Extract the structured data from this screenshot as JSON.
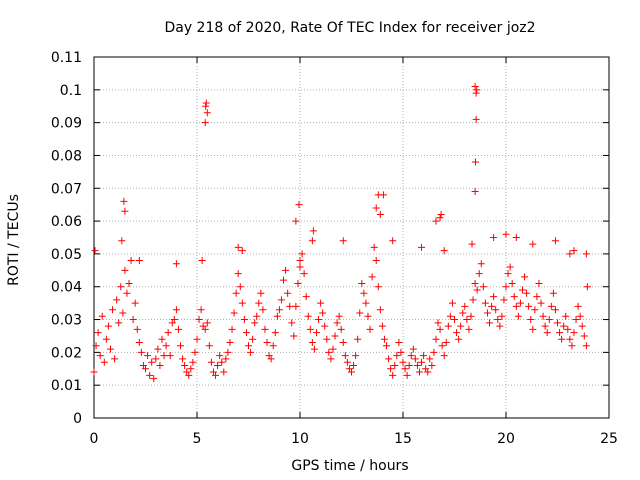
{
  "chart_data": {
    "type": "scatter",
    "title": "Day 218 of 2020, Rate Of TEC Index for receiver joz2",
    "xlabel": "GPS time / hours",
    "ylabel": "ROTI / TECUs",
    "xlim": [
      0,
      25
    ],
    "ylim": [
      0,
      0.11
    ],
    "xticks": [
      0,
      5,
      10,
      15,
      20,
      25
    ],
    "xtick_labels": [
      "0",
      "5",
      "10",
      "15",
      "20",
      "25"
    ],
    "yticks": [
      0,
      0.01,
      0.02,
      0.03,
      0.04,
      0.05,
      0.06,
      0.07,
      0.08,
      0.09,
      0.1,
      0.11
    ],
    "ytick_labels": [
      "0",
      "0.01",
      "0.02",
      "0.03",
      "0.04",
      "0.05",
      "0.06",
      "0.07",
      "0.08",
      "0.09",
      "0.1",
      "0.11"
    ],
    "grid": true,
    "marker": "+",
    "series_color": "#ff0000",
    "series": [
      {
        "name": "ROTI",
        "x": [
          0.0,
          0.1,
          0.2,
          0.3,
          0.4,
          0.5,
          0.6,
          0.7,
          0.8,
          0.9,
          1.0,
          1.1,
          1.2,
          1.3,
          1.4,
          1.5,
          1.6,
          1.7,
          1.8,
          1.9,
          2.0,
          2.1,
          2.2,
          2.3,
          2.4,
          2.5,
          2.6,
          2.7,
          2.8,
          2.9,
          3.0,
          3.1,
          3.2,
          3.3,
          3.4,
          3.5,
          3.6,
          3.7,
          3.8,
          3.9,
          4.0,
          4.1,
          4.2,
          4.3,
          4.4,
          4.5,
          4.6,
          4.7,
          4.8,
          4.9,
          5.0,
          5.1,
          5.2,
          5.3,
          5.4,
          5.5,
          5.6,
          5.7,
          5.8,
          5.9,
          6.0,
          6.1,
          6.2,
          6.3,
          6.4,
          6.5,
          6.6,
          6.7,
          6.8,
          6.9,
          7.0,
          7.1,
          7.2,
          7.3,
          7.4,
          7.5,
          7.6,
          7.7,
          7.8,
          7.9,
          8.0,
          8.1,
          8.2,
          8.3,
          8.4,
          8.5,
          8.6,
          8.7,
          8.8,
          8.9,
          9.0,
          9.1,
          9.2,
          9.3,
          9.4,
          9.5,
          9.6,
          9.7,
          9.8,
          9.9,
          10.0,
          10.1,
          10.2,
          10.3,
          10.4,
          10.5,
          10.6,
          10.7,
          10.8,
          10.9,
          11.0,
          11.1,
          11.2,
          11.3,
          11.4,
          11.5,
          11.6,
          11.7,
          11.8,
          11.9,
          12.0,
          12.1,
          12.2,
          12.3,
          12.4,
          12.5,
          12.6,
          12.7,
          12.8,
          12.9,
          13.0,
          13.1,
          13.2,
          13.3,
          13.4,
          13.5,
          13.6,
          13.7,
          13.8,
          13.9,
          14.0,
          14.1,
          14.2,
          14.3,
          14.4,
          14.5,
          14.6,
          14.7,
          14.8,
          14.9,
          15.0,
          15.1,
          15.2,
          15.3,
          15.4,
          15.5,
          15.6,
          15.7,
          15.8,
          15.9,
          16.0,
          16.1,
          16.2,
          16.3,
          16.4,
          16.5,
          16.6,
          16.7,
          16.8,
          16.9,
          17.0,
          17.1,
          17.2,
          17.3,
          17.4,
          17.5,
          17.6,
          17.7,
          17.8,
          17.9,
          18.0,
          18.1,
          18.2,
          18.3,
          18.4,
          18.5,
          18.6,
          18.7,
          18.8,
          18.9,
          19.0,
          19.1,
          19.2,
          19.3,
          19.4,
          19.5,
          19.6,
          19.7,
          19.8,
          19.9,
          20.0,
          20.1,
          20.2,
          20.3,
          20.4,
          20.5,
          20.6,
          20.7,
          20.8,
          20.9,
          21.0,
          21.1,
          21.2,
          21.3,
          21.4,
          21.5,
          21.6,
          21.7,
          21.8,
          21.9,
          22.0,
          22.1,
          22.2,
          22.3,
          22.4,
          22.5,
          22.6,
          22.7,
          22.8,
          22.9,
          23.0,
          23.1,
          23.2,
          23.3,
          23.4,
          23.5,
          23.6,
          23.7,
          23.8,
          23.9,
          0.05,
          1.35,
          1.5,
          1.45,
          2.2,
          4.0,
          5.25,
          5.4,
          5.45,
          5.5,
          5.42,
          7.0,
          7.2,
          9.8,
          9.95,
          10.0,
          10.6,
          10.65,
          12.1,
          13.7,
          13.8,
          13.9,
          14.05,
          14.5,
          15.9,
          16.6,
          16.8,
          16.85,
          17.0,
          18.35,
          18.5,
          18.52,
          18.55,
          18.55,
          18.58,
          18.5,
          19.4,
          20.0,
          20.5,
          21.3,
          22.4,
          23.1,
          23.3,
          23.9,
          23.95
        ],
        "y": [
          0.014,
          0.022,
          0.026,
          0.019,
          0.031,
          0.017,
          0.024,
          0.028,
          0.021,
          0.033,
          0.018,
          0.036,
          0.029,
          0.04,
          0.032,
          0.045,
          0.038,
          0.041,
          0.048,
          0.03,
          0.035,
          0.027,
          0.023,
          0.02,
          0.016,
          0.015,
          0.019,
          0.013,
          0.017,
          0.012,
          0.018,
          0.021,
          0.016,
          0.024,
          0.019,
          0.022,
          0.026,
          0.019,
          0.029,
          0.03,
          0.033,
          0.027,
          0.022,
          0.018,
          0.016,
          0.014,
          0.013,
          0.015,
          0.017,
          0.02,
          0.024,
          0.03,
          0.033,
          0.028,
          0.027,
          0.029,
          0.022,
          0.017,
          0.014,
          0.013,
          0.016,
          0.019,
          0.017,
          0.014,
          0.018,
          0.02,
          0.023,
          0.027,
          0.032,
          0.038,
          0.044,
          0.04,
          0.035,
          0.03,
          0.026,
          0.022,
          0.02,
          0.024,
          0.029,
          0.031,
          0.035,
          0.038,
          0.033,
          0.027,
          0.023,
          0.019,
          0.018,
          0.022,
          0.026,
          0.031,
          0.033,
          0.036,
          0.042,
          0.045,
          0.038,
          0.034,
          0.029,
          0.025,
          0.034,
          0.041,
          0.046,
          0.05,
          0.044,
          0.037,
          0.031,
          0.027,
          0.023,
          0.021,
          0.026,
          0.03,
          0.035,
          0.032,
          0.028,
          0.024,
          0.02,
          0.018,
          0.021,
          0.025,
          0.029,
          0.031,
          0.027,
          0.023,
          0.019,
          0.017,
          0.015,
          0.014,
          0.016,
          0.019,
          0.024,
          0.032,
          0.041,
          0.038,
          0.035,
          0.031,
          0.027,
          0.043,
          0.052,
          0.048,
          0.04,
          0.033,
          0.028,
          0.024,
          0.022,
          0.018,
          0.015,
          0.013,
          0.016,
          0.019,
          0.023,
          0.02,
          0.017,
          0.015,
          0.013,
          0.016,
          0.019,
          0.021,
          0.018,
          0.016,
          0.014,
          0.017,
          0.019,
          0.015,
          0.014,
          0.018,
          0.016,
          0.02,
          0.024,
          0.029,
          0.027,
          0.022,
          0.019,
          0.023,
          0.028,
          0.031,
          0.035,
          0.03,
          0.026,
          0.024,
          0.028,
          0.032,
          0.034,
          0.03,
          0.027,
          0.031,
          0.036,
          0.041,
          0.039,
          0.044,
          0.047,
          0.04,
          0.035,
          0.032,
          0.029,
          0.034,
          0.037,
          0.033,
          0.03,
          0.028,
          0.031,
          0.036,
          0.04,
          0.044,
          0.046,
          0.041,
          0.037,
          0.034,
          0.031,
          0.035,
          0.039,
          0.043,
          0.038,
          0.034,
          0.03,
          0.027,
          0.033,
          0.037,
          0.041,
          0.035,
          0.031,
          0.028,
          0.026,
          0.03,
          0.034,
          0.038,
          0.033,
          0.029,
          0.026,
          0.024,
          0.028,
          0.031,
          0.027,
          0.024,
          0.022,
          0.026,
          0.03,
          0.034,
          0.031,
          0.028,
          0.025,
          0.022,
          0.051,
          0.054,
          0.063,
          0.066,
          0.048,
          0.047,
          0.048,
          0.09,
          0.096,
          0.093,
          0.095,
          0.052,
          0.051,
          0.06,
          0.065,
          0.048,
          0.054,
          0.057,
          0.054,
          0.064,
          0.068,
          0.062,
          0.068,
          0.054,
          0.052,
          0.06,
          0.061,
          0.062,
          0.051,
          0.053,
          0.069,
          0.078,
          0.091,
          0.099,
          0.1,
          0.101,
          0.055,
          0.056,
          0.055,
          0.053,
          0.054,
          0.05,
          0.051,
          0.05,
          0.04
        ]
      }
    ]
  }
}
